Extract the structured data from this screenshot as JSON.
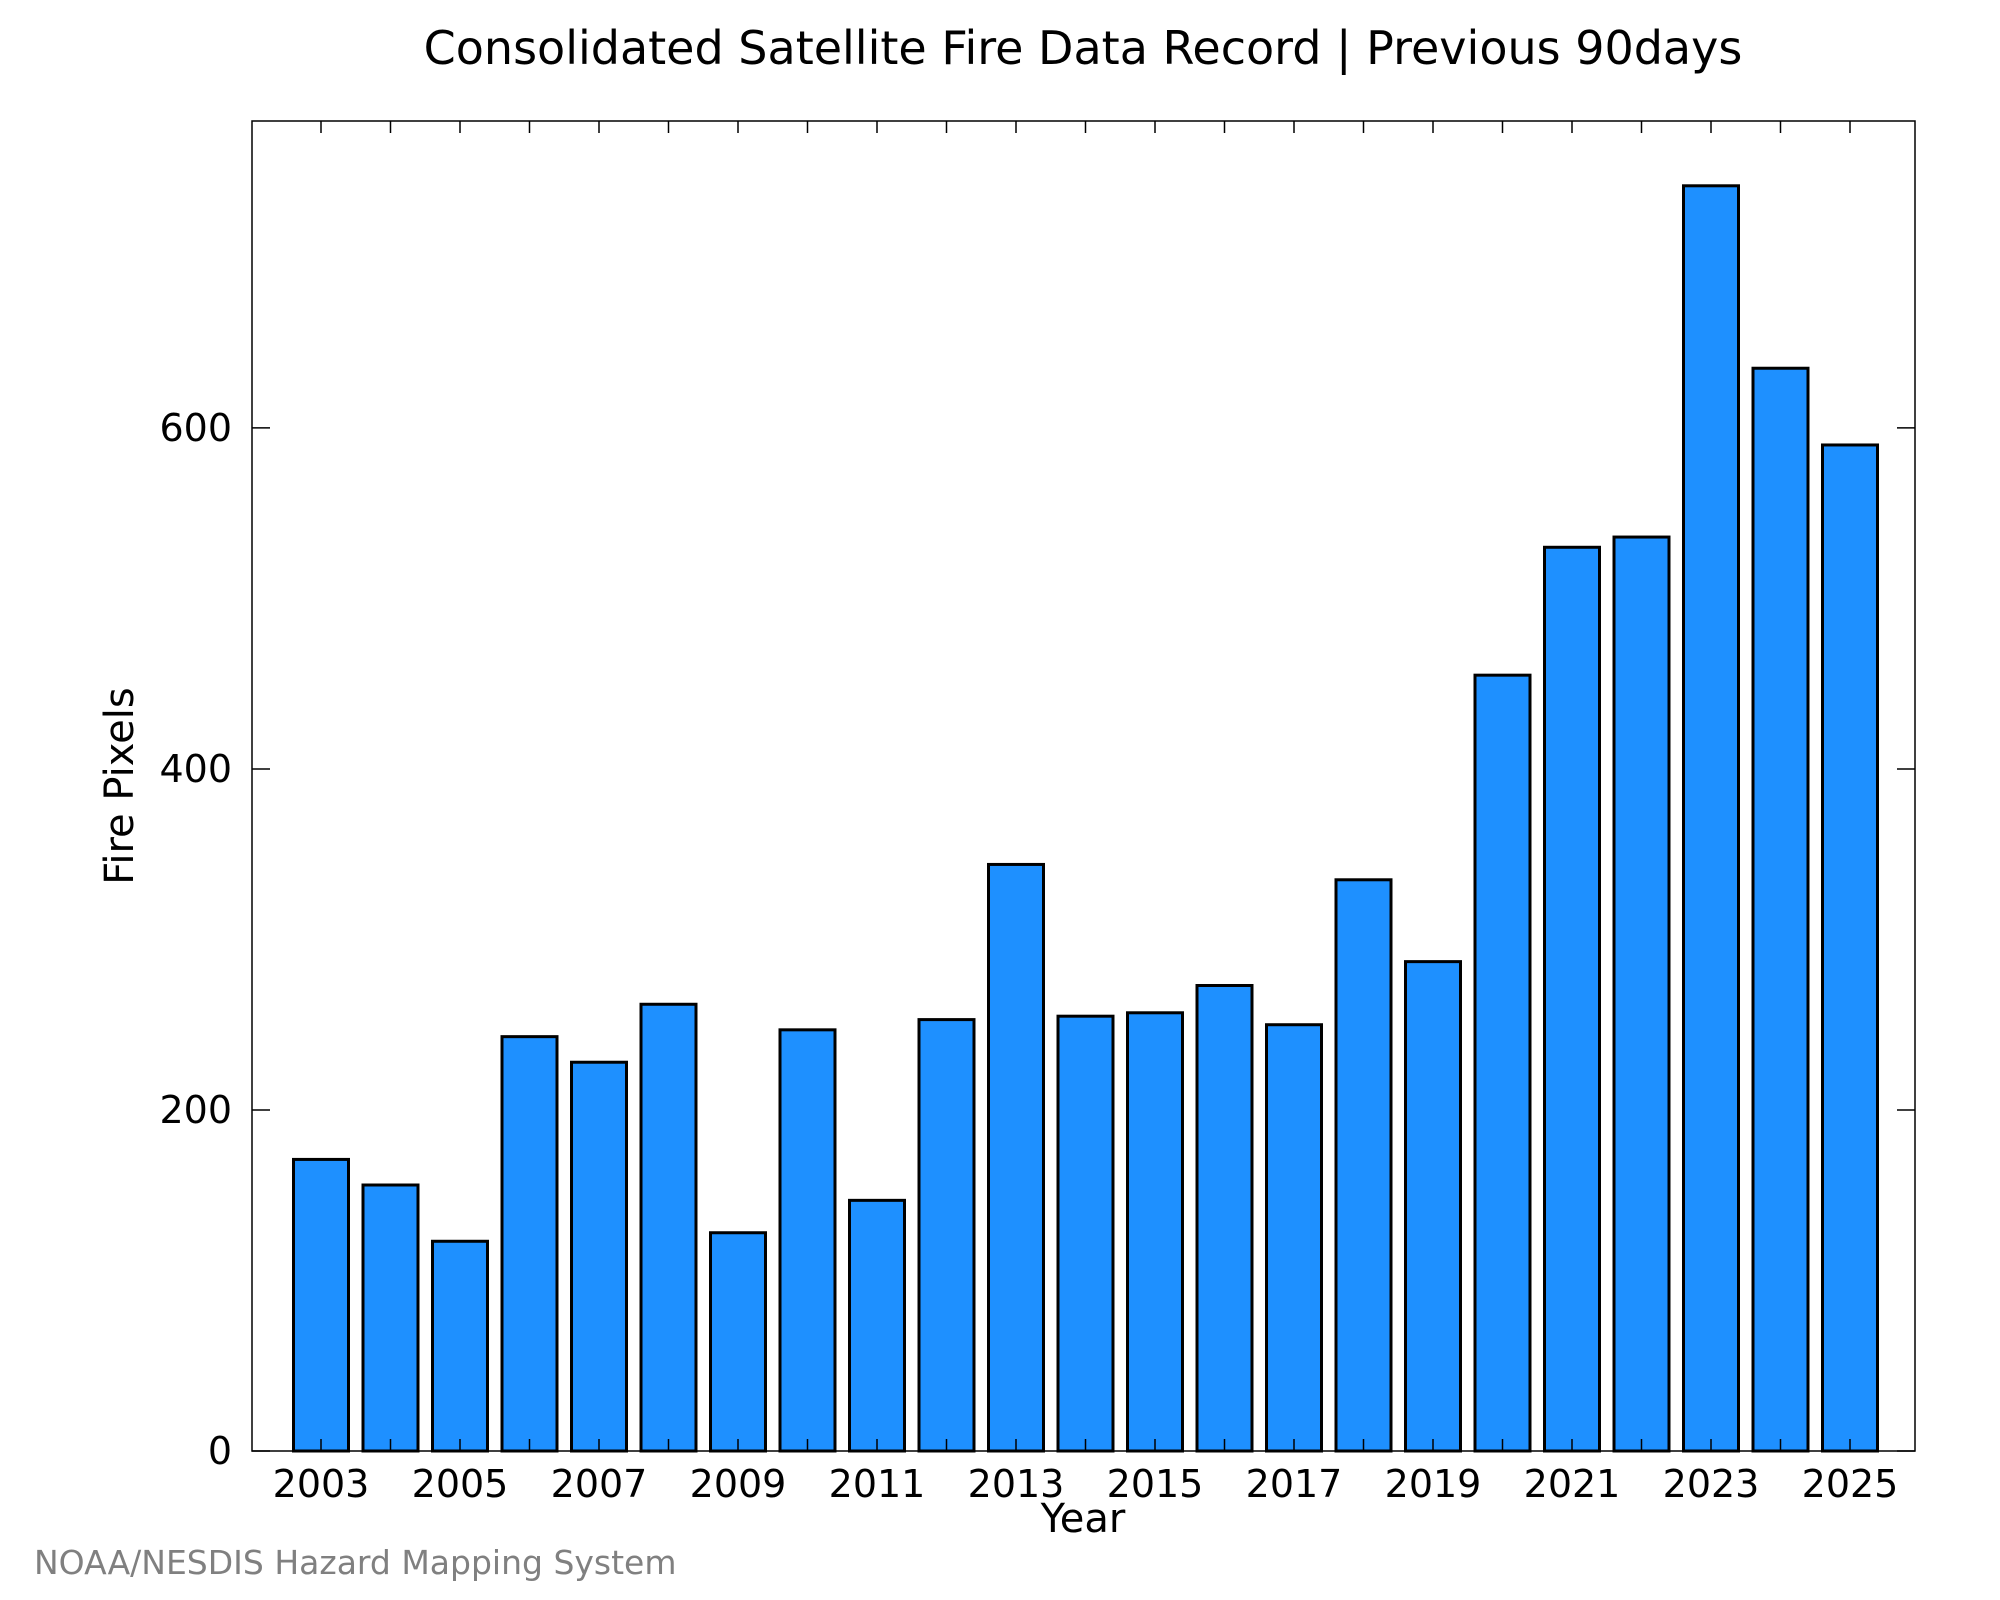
{
  "chart_data": {
    "type": "bar",
    "title": "Consolidated Satellite Fire Data Record | Previous 90days",
    "xlabel": "Year",
    "ylabel": "Fire Pixels",
    "categories": [
      "2003",
      "2004",
      "2005",
      "2006",
      "2007",
      "2008",
      "2009",
      "2010",
      "2011",
      "2012",
      "2013",
      "2014",
      "2015",
      "2016",
      "2017",
      "2018",
      "2019",
      "2020",
      "2021",
      "2022",
      "2023",
      "2024",
      "2025"
    ],
    "values": [
      171,
      156,
      123,
      243,
      228,
      262,
      128,
      247,
      147,
      253,
      344,
      255,
      257,
      273,
      250,
      335,
      287,
      455,
      530,
      536,
      742,
      635,
      590
    ],
    "x_tick_labels": [
      "2003",
      "2005",
      "2007",
      "2009",
      "2011",
      "2013",
      "2015",
      "2017",
      "2019",
      "2021",
      "2023",
      "2025"
    ],
    "y_tick_labels": [
      "0",
      "200",
      "400",
      "600"
    ],
    "y_ticks": [
      0,
      200,
      400,
      600
    ],
    "ylim": [
      0,
      780
    ],
    "bar_color": "#1E90FF",
    "bar_edge_color": "#000000",
    "grid": false,
    "legend": "none"
  },
  "footer": {
    "source": "NOAA/NESDIS Hazard Mapping System"
  }
}
